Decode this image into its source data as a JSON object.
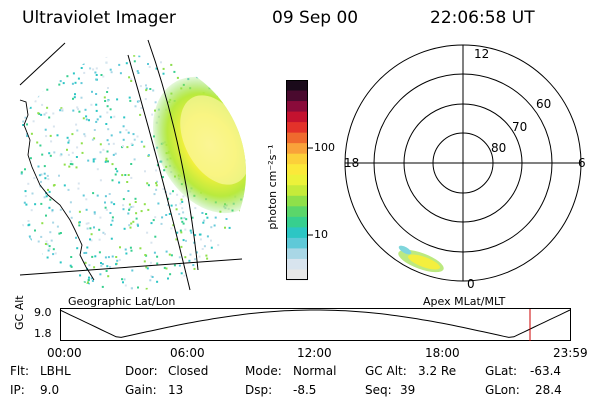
{
  "header": {
    "title": "Ultraviolet Imager",
    "date": "09 Sep 00",
    "time": "22:06:58 UT"
  },
  "colorbar": {
    "unit_label": "photon cm⁻²s⁻¹",
    "ticks": [
      "100",
      "10"
    ],
    "colors": [
      "#e8e8e8",
      "#d8e4ee",
      "#a9d7e6",
      "#5fc9d8",
      "#2cc6c4",
      "#37cf8f",
      "#5bd66a",
      "#8fe04a",
      "#c6eb3a",
      "#ecf23a",
      "#fbe93a",
      "#fcd03a",
      "#f9a23a",
      "#ef6a2e",
      "#e3322a",
      "#c4122f",
      "#8a0b3a",
      "#4a0a2e",
      "#1a0a1a"
    ]
  },
  "polar": {
    "mlt_labels": [
      "12",
      "18",
      "6",
      "0"
    ],
    "lat_labels": [
      "60",
      "70",
      "80"
    ]
  },
  "captions": {
    "left": "Geographic Lat/Lon",
    "right": "Apex MLat/MLT"
  },
  "altitude_plot": {
    "ylabel": "GC Alt",
    "yticks": [
      "9.0",
      "1.8"
    ],
    "xticks": [
      "00:00",
      "06:00",
      "12:00",
      "18:00",
      "23:59"
    ],
    "current_time_fraction": 0.9215,
    "marker_color": "#cc0000"
  },
  "info": {
    "flt_label": "Flt:",
    "flt_value": "LBHL",
    "ip_label": "IP:",
    "ip_value": "9.0",
    "door_label": "Door:",
    "door_value": "Closed",
    "gain_label": "Gain:",
    "gain_value": "13",
    "mode_label": "Mode:",
    "mode_value": "Normal",
    "dsp_label": "Dsp:",
    "dsp_value": "-8.5",
    "gcalt_label": "GC Alt:",
    "gcalt_value": "3.2 Re",
    "seq_label": "Seq:",
    "seq_value": "39",
    "glat_label": "GLat:",
    "glat_value": "-63.4",
    "glon_label": "GLon:",
    "glon_value": "28.4"
  }
}
